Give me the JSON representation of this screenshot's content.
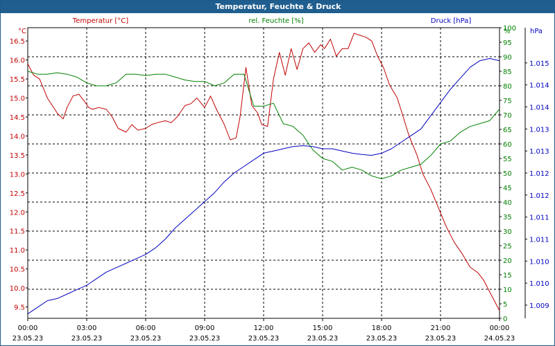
{
  "chart_data": {
    "type": "line",
    "title": "Temperatur, Feuchte & Druck",
    "colors": {
      "temp": "#c00000",
      "hum": "#008000",
      "press": "#0000c0",
      "axis": "#000000",
      "grid": "#000000",
      "title_bg": "#1f5e8f"
    },
    "axes": {
      "temp": {
        "unit_label": "°C",
        "series_label": "Temperatur [°C]",
        "min": 9.2,
        "max": 16.85,
        "ticks": [
          "9.5",
          "10.0",
          "10.5",
          "11.0",
          "11.5",
          "12.0",
          "12.5",
          "13.0",
          "13.5",
          "14.0",
          "14.5",
          "15.0",
          "15.5",
          "16.0",
          "16.5"
        ],
        "tick_values": [
          9.5,
          10.0,
          10.5,
          11.0,
          11.5,
          12.0,
          12.5,
          13.0,
          13.5,
          14.0,
          14.5,
          15.0,
          15.5,
          16.0,
          16.5
        ]
      },
      "hum": {
        "unit_label": "%",
        "series_label": "rel. Feuchte [%]",
        "min": 0,
        "max": 100,
        "ticks": [
          "0",
          "5",
          "10",
          "15",
          "20",
          "25",
          "30",
          "35",
          "40",
          "45",
          "50",
          "55",
          "60",
          "65",
          "70",
          "75",
          "80",
          "85",
          "90",
          "95",
          "100"
        ]
      },
      "press": {
        "unit_label": "hPa",
        "series_label": "Druck [hPa]",
        "min": 1008.7,
        "max": 1015.3,
        "ticks": [
          "1.009",
          "1.010",
          "1.010",
          "1.011",
          "1.011",
          "1.012",
          "1.012",
          "1.013",
          "1.013",
          "1.014",
          "1.014",
          "1.015"
        ],
        "tick_values": [
          1009.0,
          1009.5,
          1010.0,
          1010.5,
          1011.0,
          1011.5,
          1012.0,
          1012.5,
          1013.0,
          1013.5,
          1014.0,
          1014.5
        ]
      }
    },
    "x_range": [
      0,
      24
    ],
    "x_ticks": [
      {
        "h": 0,
        "time": "00:00",
        "date": "23.05.23"
      },
      {
        "h": 3,
        "time": "03:00",
        "date": "23.05.23"
      },
      {
        "h": 6,
        "time": "06:00",
        "date": "23.05.23"
      },
      {
        "h": 9,
        "time": "09:00",
        "date": "23.05.23"
      },
      {
        "h": 12,
        "time": "12:00",
        "date": "23.05.23"
      },
      {
        "h": 15,
        "time": "15:00",
        "date": "23.05.23"
      },
      {
        "h": 18,
        "time": "18:00",
        "date": "23.05.23"
      },
      {
        "h": 21,
        "time": "21:00",
        "date": "23.05.23"
      },
      {
        "h": 24,
        "time": "00:00",
        "date": "24.05.23"
      }
    ],
    "series": [
      {
        "name": "Temperatur [°C]",
        "axis": "temp",
        "x": [
          0,
          0.3,
          0.6,
          1.0,
          1.5,
          1.8,
          2.0,
          2.3,
          2.6,
          2.9,
          3.1,
          3.3,
          3.6,
          4.0,
          4.3,
          4.6,
          5.0,
          5.3,
          5.6,
          6.0,
          6.3,
          6.6,
          7.0,
          7.3,
          7.6,
          8.0,
          8.3,
          8.6,
          9.0,
          9.3,
          9.6,
          10.0,
          10.3,
          10.6,
          10.8,
          11.1,
          11.4,
          11.7,
          11.9,
          12.2,
          12.5,
          12.8,
          13.1,
          13.4,
          13.7,
          14.0,
          14.3,
          14.6,
          14.9,
          15.1,
          15.4,
          15.7,
          16.0,
          16.3,
          16.6,
          16.9,
          17.2,
          17.5,
          17.8,
          18.1,
          18.4,
          18.8,
          19.1,
          19.4,
          19.8,
          20.1,
          20.5,
          20.9,
          21.3,
          21.7,
          22.1,
          22.5,
          22.9,
          23.2,
          23.5,
          23.8,
          24.0
        ],
        "values": [
          15.9,
          15.6,
          15.5,
          15.0,
          14.6,
          14.45,
          14.75,
          15.05,
          15.1,
          14.9,
          14.75,
          14.7,
          14.75,
          14.7,
          14.5,
          14.2,
          14.1,
          14.3,
          14.15,
          14.2,
          14.3,
          14.35,
          14.4,
          14.35,
          14.5,
          14.8,
          14.85,
          15.0,
          14.75,
          15.05,
          14.7,
          14.3,
          13.9,
          13.95,
          14.5,
          15.8,
          14.8,
          14.6,
          14.3,
          14.25,
          15.5,
          16.2,
          15.6,
          16.3,
          15.75,
          16.3,
          16.45,
          16.2,
          16.4,
          16.3,
          16.55,
          16.1,
          16.3,
          16.3,
          16.7,
          16.65,
          16.6,
          16.5,
          16.1,
          15.8,
          15.35,
          15.0,
          14.5,
          14.0,
          13.5,
          13.0,
          12.6,
          12.1,
          11.6,
          11.2,
          10.9,
          10.55,
          10.4,
          10.2,
          9.9,
          9.6,
          9.4
        ]
      },
      {
        "name": "rel. Feuchte [%]",
        "axis": "hum",
        "x": [
          0,
          0.5,
          1.0,
          1.5,
          2.0,
          2.5,
          3.0,
          3.5,
          4.0,
          4.5,
          5.0,
          5.5,
          6.0,
          6.5,
          7.0,
          7.5,
          8.0,
          8.5,
          9.0,
          9.5,
          10.0,
          10.5,
          11.0,
          11.5,
          12.0,
          12.5,
          13.0,
          13.5,
          14.0,
          14.5,
          15.0,
          15.5,
          16.0,
          16.5,
          17.0,
          17.5,
          18.0,
          18.5,
          19.0,
          19.5,
          20.0,
          20.5,
          21.0,
          21.5,
          22.0,
          22.5,
          23.0,
          23.5,
          24.0
        ],
        "values": [
          85,
          84,
          84,
          84.5,
          84,
          83,
          81,
          80,
          80,
          81,
          84,
          84,
          83.5,
          84,
          84,
          83,
          82,
          81.5,
          81.5,
          80,
          81,
          84,
          84,
          73,
          73,
          74,
          67,
          66,
          63,
          58,
          55,
          54,
          51,
          52,
          51,
          49,
          48,
          49,
          51,
          52,
          53,
          56,
          60,
          61,
          64,
          66,
          67,
          68,
          72
        ]
      },
      {
        "name": "Druck [hPa]",
        "axis": "press",
        "x": [
          0,
          0.5,
          1.0,
          1.5,
          2.0,
          2.5,
          3.0,
          3.5,
          4.0,
          4.5,
          5.0,
          5.5,
          6.0,
          6.5,
          7.0,
          7.5,
          8.0,
          8.5,
          9.0,
          9.5,
          10.0,
          10.5,
          11.0,
          11.5,
          12.0,
          12.5,
          13.0,
          13.5,
          14.0,
          14.5,
          15.0,
          15.5,
          16.0,
          16.5,
          17.0,
          17.5,
          18.0,
          18.5,
          19.0,
          19.5,
          20.0,
          20.5,
          21.0,
          21.5,
          22.0,
          22.5,
          23.0,
          23.5,
          24.0
        ],
        "values": [
          1008.8,
          1008.95,
          1009.1,
          1009.15,
          1009.25,
          1009.35,
          1009.45,
          1009.6,
          1009.75,
          1009.85,
          1009.95,
          1010.05,
          1010.15,
          1010.3,
          1010.5,
          1010.75,
          1010.95,
          1011.15,
          1011.35,
          1011.55,
          1011.8,
          1012.0,
          1012.15,
          1012.3,
          1012.45,
          1012.5,
          1012.55,
          1012.6,
          1012.62,
          1012.6,
          1012.55,
          1012.55,
          1012.5,
          1012.45,
          1012.42,
          1012.4,
          1012.45,
          1012.55,
          1012.7,
          1012.85,
          1013.0,
          1013.3,
          1013.6,
          1013.9,
          1014.15,
          1014.4,
          1014.55,
          1014.6,
          1014.55
        ]
      }
    ]
  }
}
